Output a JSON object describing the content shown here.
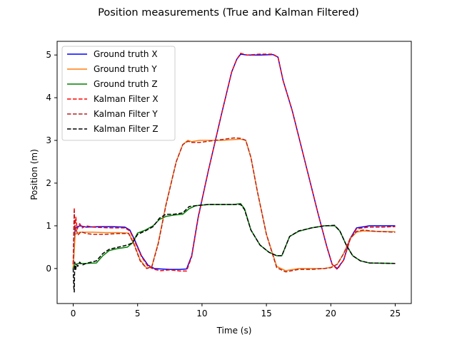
{
  "chart_data": {
    "type": "line",
    "title": "Position measurements (True and Kalman Filtered)",
    "xlabel": "Time (s)",
    "ylabel": "Position (m)",
    "xlim": [
      -1.25,
      26.25
    ],
    "ylim": [
      -0.82,
      5.32
    ],
    "xticks": [
      0,
      5,
      10,
      15,
      20,
      25
    ],
    "yticks": [
      0,
      1,
      2,
      3,
      4,
      5
    ],
    "grid": false,
    "legend_position": "upper-left",
    "series": [
      {
        "name": "Ground truth X",
        "color": "#0000ff",
        "dashed": false,
        "x": [
          0,
          0.15,
          0.5,
          1,
          2,
          3,
          4,
          4.4,
          4.8,
          5.3,
          5.8,
          6.3,
          6.8,
          7.5,
          8.3,
          8.8,
          9.2,
          9.7,
          10.5,
          11.5,
          12.3,
          12.7,
          13.0,
          13.5,
          14.5,
          15.5,
          15.9,
          16.3,
          17.0,
          18.0,
          19.0,
          19.7,
          20.1,
          20.5,
          21.0,
          21.5,
          22.0,
          23.0,
          24.0,
          25.0
        ],
        "y": [
          0.0,
          0.95,
          1.0,
          0.97,
          0.98,
          0.98,
          0.97,
          0.9,
          0.65,
          0.3,
          0.08,
          0.0,
          -0.01,
          -0.02,
          -0.02,
          -0.01,
          0.3,
          1.2,
          2.3,
          3.6,
          4.6,
          4.9,
          5.02,
          5.0,
          5.0,
          5.01,
          4.95,
          4.4,
          3.7,
          2.5,
          1.3,
          0.5,
          0.1,
          0.0,
          0.2,
          0.7,
          0.95,
          1.0,
          1.0,
          1.0
        ]
      },
      {
        "name": "Ground truth Y",
        "color": "#ff7f0e",
        "dashed": false,
        "x": [
          0,
          0.15,
          0.5,
          1.5,
          2.5,
          3.5,
          4.3,
          4.7,
          5.2,
          5.7,
          6.1,
          6.6,
          7.2,
          8.0,
          8.5,
          8.9,
          9.2,
          9.8,
          10.5,
          11.5,
          12.5,
          13.0,
          13.4,
          13.8,
          14.3,
          15.0,
          15.8,
          16.5,
          17.5,
          18.5,
          19.5,
          20.0,
          20.5,
          21.0,
          21.5,
          22.0,
          22.5,
          23.5,
          25.0
        ],
        "y": [
          0.0,
          0.8,
          0.85,
          0.85,
          0.84,
          0.84,
          0.83,
          0.6,
          0.2,
          0.01,
          0.05,
          0.6,
          1.5,
          2.5,
          2.9,
          3.0,
          2.97,
          3.0,
          3.0,
          3.0,
          3.02,
          3.03,
          3.0,
          2.6,
          1.8,
          0.8,
          0.05,
          -0.05,
          0.0,
          0.0,
          0.0,
          0.03,
          0.1,
          0.35,
          0.7,
          0.85,
          0.88,
          0.87,
          0.86
        ]
      },
      {
        "name": "Ground truth Z",
        "color": "#008000",
        "dashed": false,
        "x": [
          0,
          0.15,
          0.5,
          1,
          1.8,
          2.3,
          2.8,
          3.5,
          4.2,
          4.6,
          5.0,
          5.6,
          6.2,
          6.7,
          7.2,
          7.8,
          8.5,
          9.0,
          9.5,
          10.5,
          11.5,
          12.5,
          13.0,
          13.3,
          13.8,
          14.5,
          15.2,
          15.8,
          16.2,
          16.8,
          17.5,
          18.5,
          19.5,
          20.3,
          20.7,
          21.2,
          21.7,
          22.3,
          23.0,
          25.0
        ],
        "y": [
          0.0,
          0.1,
          0.12,
          0.12,
          0.13,
          0.3,
          0.42,
          0.47,
          0.5,
          0.6,
          0.83,
          0.9,
          1.0,
          1.15,
          1.22,
          1.25,
          1.27,
          1.4,
          1.47,
          1.5,
          1.5,
          1.5,
          1.52,
          1.4,
          0.9,
          0.55,
          0.38,
          0.3,
          0.3,
          0.75,
          0.87,
          0.95,
          1.0,
          1.0,
          0.88,
          0.55,
          0.3,
          0.18,
          0.13,
          0.12
        ]
      },
      {
        "name": "Kalman Filter X",
        "color": "#ff0000",
        "dashed": true,
        "x": [
          0,
          0.08,
          0.12,
          0.2,
          0.3,
          0.5,
          0.7,
          1.0,
          1.5,
          2,
          3,
          4,
          4.4,
          4.8,
          5.3,
          5.8,
          6.3,
          6.8,
          7.5,
          8.3,
          8.8,
          9.2,
          9.7,
          10.5,
          11.5,
          12.3,
          12.7,
          13.0,
          13.5,
          14.5,
          15.5,
          15.9,
          16.3,
          17.0,
          18.0,
          19.0,
          19.7,
          20.1,
          20.5,
          21.0,
          21.5,
          22.0,
          23.0,
          24.0,
          25.0
        ],
        "y": [
          0.1,
          1.42,
          0.9,
          1.2,
          0.92,
          1.05,
          0.95,
          1.0,
          0.97,
          0.96,
          0.95,
          0.95,
          0.88,
          0.62,
          0.28,
          0.05,
          -0.02,
          -0.05,
          -0.03,
          -0.06,
          -0.06,
          0.28,
          1.18,
          2.3,
          3.6,
          4.6,
          4.9,
          5.04,
          5.0,
          5.02,
          5.02,
          4.95,
          4.4,
          3.7,
          2.5,
          1.3,
          0.5,
          0.1,
          -0.02,
          0.2,
          0.68,
          0.93,
          0.97,
          0.97,
          0.98
        ]
      },
      {
        "name": "Kalman Filter Y",
        "color": "#b22222",
        "dashed": true,
        "x": [
          0,
          0.08,
          0.12,
          0.2,
          0.35,
          0.6,
          1.0,
          1.5,
          2.5,
          3.5,
          4.3,
          4.7,
          5.2,
          5.7,
          6.1,
          6.6,
          7.2,
          8.0,
          8.5,
          8.9,
          9.2,
          9.8,
          10.5,
          11.5,
          12.5,
          13.0,
          13.4,
          13.8,
          14.3,
          15.0,
          15.8,
          16.5,
          17.5,
          18.5,
          19.5,
          20.0,
          20.5,
          21.0,
          21.5,
          22.0,
          22.5,
          23.5,
          25.0
        ],
        "y": [
          0.1,
          1.35,
          0.8,
          0.95,
          0.78,
          0.86,
          0.82,
          0.8,
          0.8,
          0.82,
          0.82,
          0.58,
          0.18,
          0.0,
          0.04,
          0.58,
          1.48,
          2.5,
          2.9,
          2.98,
          2.95,
          2.95,
          2.98,
          3.02,
          3.06,
          3.05,
          3.0,
          2.6,
          1.8,
          0.8,
          0.02,
          -0.08,
          -0.02,
          -0.02,
          0.0,
          0.02,
          0.1,
          0.35,
          0.7,
          0.87,
          0.9,
          0.87,
          0.85
        ]
      },
      {
        "name": "Kalman Filter Z",
        "color": "#000000",
        "dashed": true,
        "x": [
          0,
          0.05,
          0.08,
          0.12,
          0.18,
          0.25,
          0.35,
          0.5,
          0.7,
          1.0,
          1.4,
          1.8,
          2.3,
          2.8,
          3.5,
          4.2,
          4.6,
          5.0,
          5.6,
          6.2,
          6.7,
          7.2,
          7.8,
          8.5,
          9.0,
          9.5,
          10.5,
          11.5,
          12.5,
          13.0,
          13.3,
          13.8,
          14.5,
          15.2,
          15.8,
          16.2,
          16.8,
          17.5,
          18.5,
          19.5,
          20.3,
          20.7,
          21.2,
          21.7,
          22.3,
          23.0,
          25.0
        ],
        "y": [
          0.0,
          -0.45,
          -0.55,
          0.15,
          -0.05,
          0.1,
          0.05,
          0.15,
          0.08,
          0.12,
          0.15,
          0.18,
          0.35,
          0.45,
          0.5,
          0.55,
          0.6,
          0.8,
          0.88,
          0.98,
          1.18,
          1.27,
          1.27,
          1.3,
          1.45,
          1.47,
          1.5,
          1.5,
          1.5,
          1.5,
          1.38,
          0.9,
          0.55,
          0.38,
          0.3,
          0.3,
          0.75,
          0.88,
          0.95,
          1.0,
          1.01,
          0.88,
          0.55,
          0.3,
          0.18,
          0.13,
          0.12
        ]
      }
    ]
  }
}
